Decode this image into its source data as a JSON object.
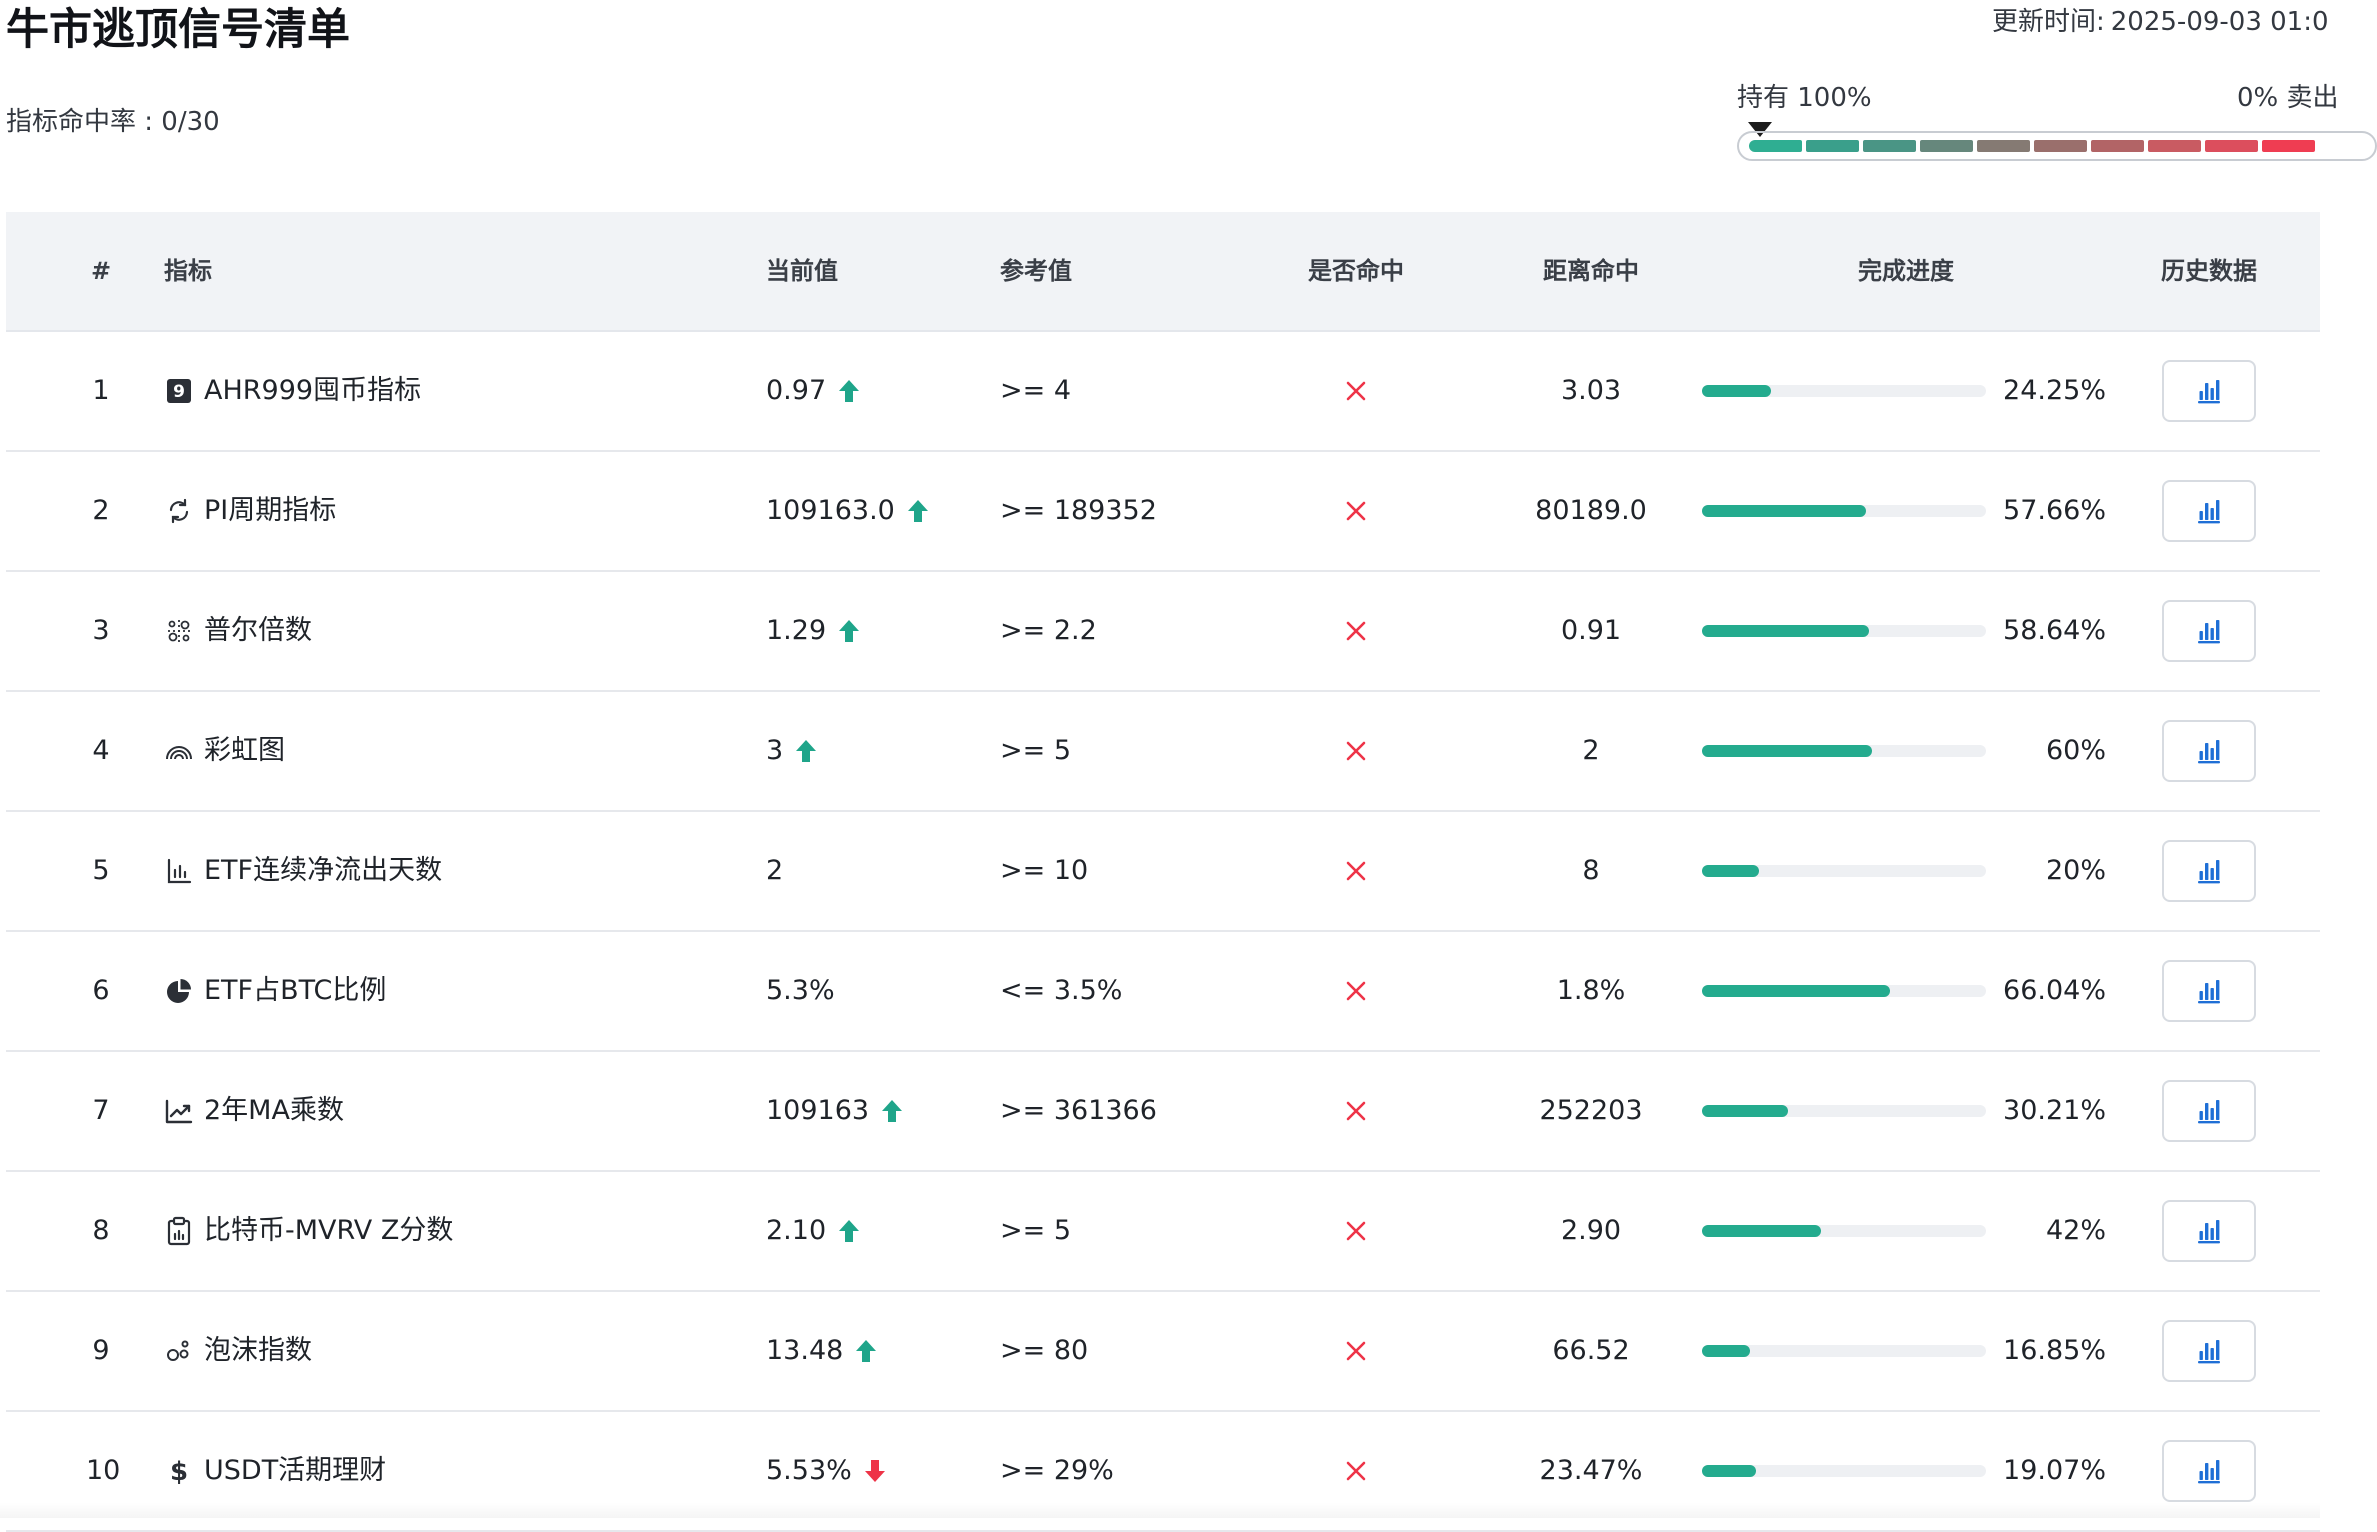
{
  "header": {
    "title": "牛市逃顶信号清单",
    "hit_rate": "指标命中率 : 0/30",
    "updated_label": "更新时间:",
    "updated_value": "2025-09-03 01:0"
  },
  "gauge": {
    "left_label": "持有 100%",
    "right_label": "0% 卖出",
    "marker_position": 0,
    "segment_colors": [
      "#2fae92",
      "#3a9f8b",
      "#4a9585",
      "#66877c",
      "#857a73",
      "#9a6f6c",
      "#b26466",
      "#c95b62",
      "#dc4e5d",
      "#ef3d52"
    ]
  },
  "table": {
    "headers": {
      "index": "#",
      "name": "指标",
      "current": "当前值",
      "reference": "参考值",
      "hit": "是否命中",
      "distance": "距离命中",
      "progress": "完成进度",
      "history": "历史数据"
    },
    "rows": [
      {
        "index": "1",
        "icon": "ahr999-badge-icon",
        "name": "AHR999囤币指标",
        "current": "0.97",
        "trend": "up",
        "reference": ">= 4",
        "hit": false,
        "distance": "3.03",
        "progress": 24.25,
        "progress_label": "24.25%"
      },
      {
        "index": "2",
        "icon": "cycle-icon",
        "name": "PI周期指标",
        "current": "109163.0",
        "trend": "up",
        "reference": ">= 189352",
        "hit": false,
        "distance": "80189.0",
        "progress": 57.66,
        "progress_label": "57.66%"
      },
      {
        "index": "3",
        "icon": "scatter-icon",
        "name": "普尔倍数",
        "current": "1.29",
        "trend": "up",
        "reference": ">= 2.2",
        "hit": false,
        "distance": "0.91",
        "progress": 58.64,
        "progress_label": "58.64%"
      },
      {
        "index": "4",
        "icon": "rainbow-icon",
        "name": "彩虹图",
        "current": "3",
        "trend": "up",
        "reference": ">= 5",
        "hit": false,
        "distance": "2",
        "progress": 60,
        "progress_label": "60%"
      },
      {
        "index": "5",
        "icon": "bar-chart-icon",
        "name": "ETF连续净流出天数",
        "current": "2",
        "trend": "none",
        "reference": ">= 10",
        "hit": false,
        "distance": "8",
        "progress": 20,
        "progress_label": "20%"
      },
      {
        "index": "6",
        "icon": "pie-chart-icon",
        "name": "ETF占BTC比例",
        "current": "5.3%",
        "trend": "none",
        "reference": "<= 3.5%",
        "hit": false,
        "distance": "1.8%",
        "progress": 66.04,
        "progress_label": "66.04%"
      },
      {
        "index": "7",
        "icon": "trend-line-icon",
        "name": "2年MA乘数",
        "current": "109163",
        "trend": "up",
        "reference": ">= 361366",
        "hit": false,
        "distance": "252203",
        "progress": 30.21,
        "progress_label": "30.21%"
      },
      {
        "index": "8",
        "icon": "clipboard-chart-icon",
        "name": "比特币-MVRV Z分数",
        "current": "2.10",
        "trend": "up",
        "reference": ">= 5",
        "hit": false,
        "distance": "2.90",
        "progress": 42,
        "progress_label": "42%"
      },
      {
        "index": "9",
        "icon": "bubbles-icon",
        "name": "泡沫指数",
        "current": "13.48",
        "trend": "up",
        "reference": ">= 80",
        "hit": false,
        "distance": "66.52",
        "progress": 16.85,
        "progress_label": "16.85%"
      },
      {
        "index": "10",
        "icon": "dollar-icon",
        "name": "USDT活期理财",
        "current": "5.53%",
        "trend": "down",
        "reference": ">= 29%",
        "hit": false,
        "distance": "23.47%",
        "progress": 19.07,
        "progress_label": "19.07%"
      }
    ]
  },
  "colors": {
    "progress_fill": "#24ab8e",
    "trend_up": "#1fa58a",
    "trend_down": "#ee3347",
    "miss_mark": "#ee3347",
    "history_icon": "#1f6fd6"
  }
}
